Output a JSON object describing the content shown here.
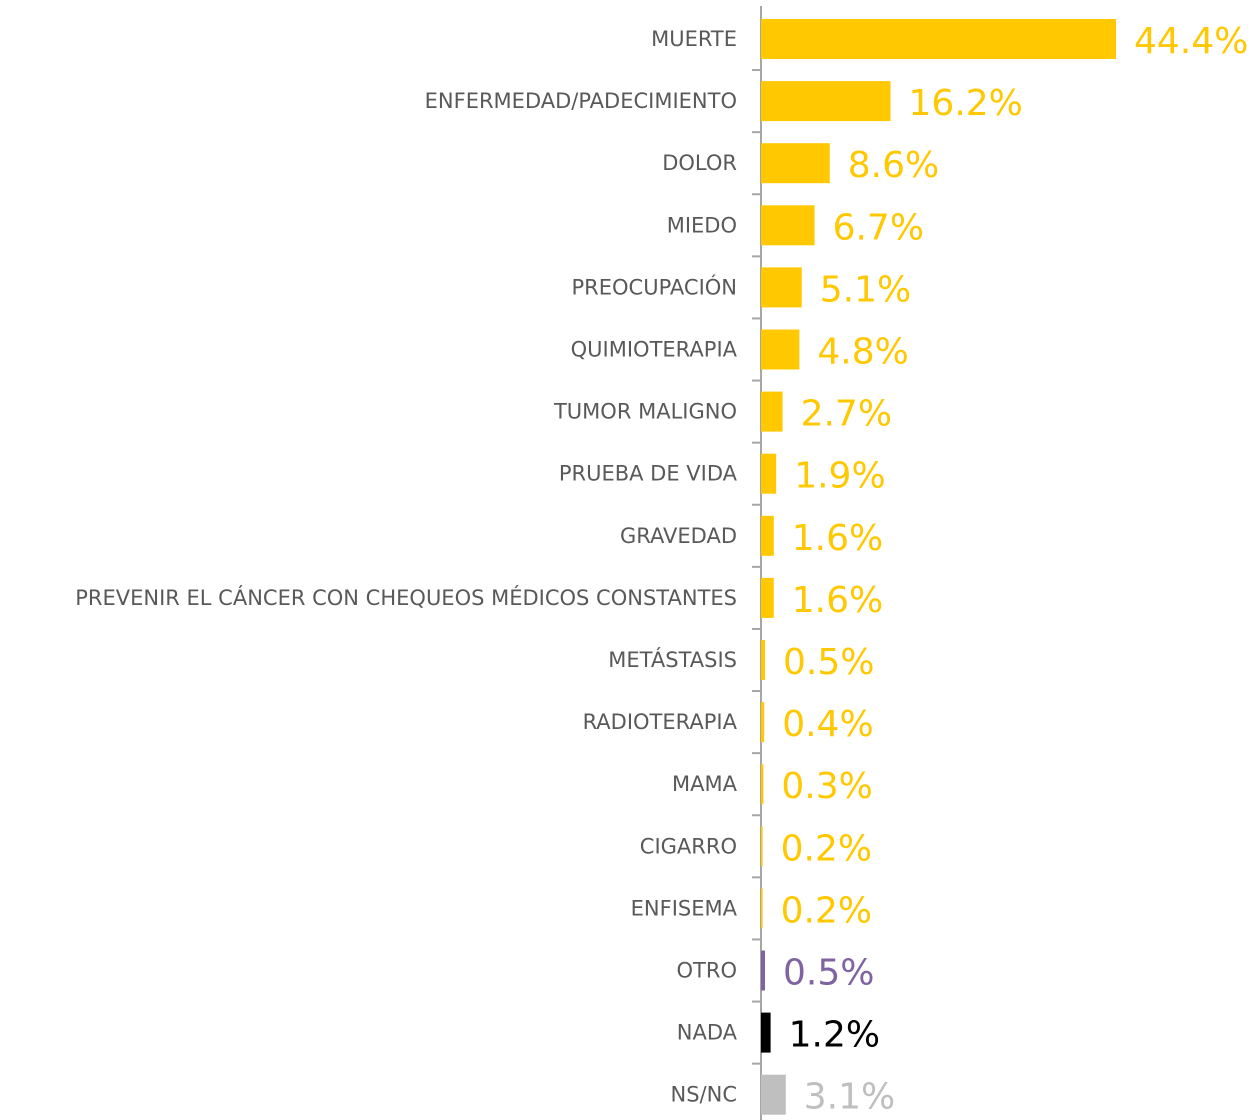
{
  "chart_data": {
    "type": "hbar",
    "categories": [
      "MUERTE",
      "ENFERMEDAD/PADECIMIENTO",
      "DOLOR",
      "MIEDO",
      "PREOCUPACIÓN",
      "QUIMIOTERAPIA",
      "TUMOR MALIGNO",
      "PRUEBA DE VIDA",
      "GRAVEDAD",
      "PREVENIR EL CÁNCER CON CHEQUEOS MÉDICOS CONSTANTES",
      "METÁSTASIS",
      "RADIOTERAPIA",
      "MAMA",
      "CIGARRO",
      "ENFISEMA",
      "OTRO",
      "NADA",
      "NS/NC"
    ],
    "values": [
      44.4,
      16.2,
      8.6,
      6.7,
      5.1,
      4.8,
      2.7,
      1.9,
      1.6,
      1.6,
      0.5,
      0.4,
      0.3,
      0.2,
      0.2,
      0.5,
      1.2,
      3.1
    ],
    "value_labels": [
      "44.4%",
      "16.2%",
      "8.6%",
      "6.7%",
      "5.1%",
      "4.8%",
      "2.7%",
      "1.9%",
      "1.6%",
      "1.6%",
      "0.5%",
      "0.4%",
      "0.3%",
      "0.2%",
      "0.2%",
      "0.5%",
      "1.2%",
      "3.1%"
    ],
    "colors": [
      "#FFC800",
      "#FFC800",
      "#FFC800",
      "#FFC800",
      "#FFC800",
      "#FFC800",
      "#FFC800",
      "#FFC800",
      "#FFC800",
      "#FFC800",
      "#FFC800",
      "#FFC800",
      "#FFC800",
      "#FFC800",
      "#FFC800",
      "#8064A2",
      "#000000",
      "#BFBFBF"
    ]
  }
}
